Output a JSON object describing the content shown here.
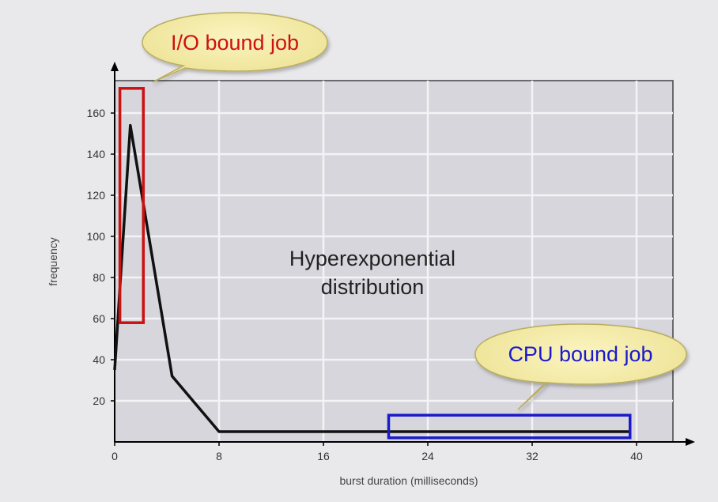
{
  "chart_data": {
    "type": "line",
    "xlabel": "burst duration (milliseconds)",
    "ylabel": "frequency",
    "xlim": [
      0,
      43
    ],
    "ylim": [
      0,
      175
    ],
    "x_ticks": [
      0,
      8,
      16,
      24,
      32,
      40
    ],
    "y_ticks": [
      20,
      40,
      60,
      80,
      100,
      120,
      140,
      160
    ],
    "grid": true,
    "series": [
      {
        "x": [
          0,
          1.2,
          4.4,
          8,
          16,
          24,
          32,
          39.5
        ],
        "y": [
          35,
          154,
          32,
          5,
          5,
          5,
          5,
          5
        ]
      }
    ],
    "center_annotation": [
      "Hyperexponential",
      "distribution"
    ],
    "callouts": [
      {
        "text": "I/O bound job",
        "color": "#cc1111",
        "range_x": [
          0.4,
          2.2
        ],
        "range_y": [
          58,
          172
        ]
      },
      {
        "text": "CPU bound job",
        "color": "#1a1acc",
        "range_x": [
          21,
          39.5
        ],
        "range_y": [
          2,
          13
        ]
      }
    ]
  }
}
